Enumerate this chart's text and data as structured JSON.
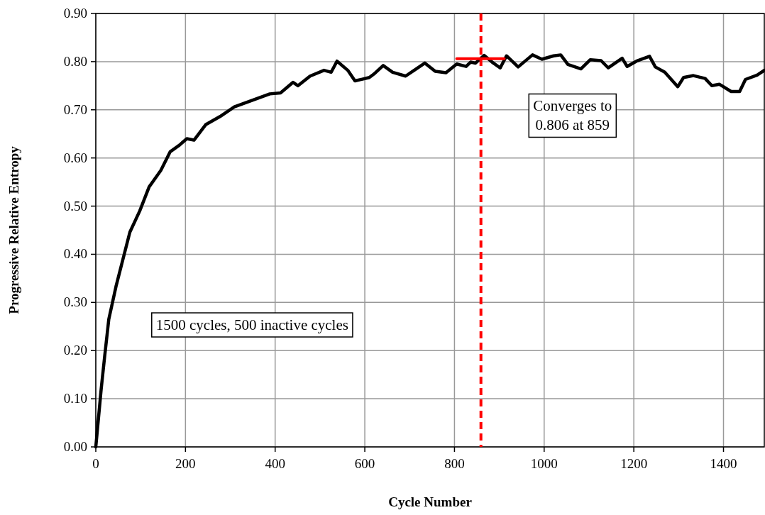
{
  "chart_data": {
    "type": "line",
    "xlabel": "Cycle Number",
    "ylabel": "Progressive Relative Entropy",
    "xlim": [
      0,
      1491
    ],
    "xticks": [
      0,
      200,
      400,
      600,
      800,
      1000,
      1200,
      1400
    ],
    "ylim": [
      0,
      0.9
    ],
    "yticks": [
      {
        "value": 0,
        "label": "0.00"
      },
      {
        "value": 0.1,
        "label": "0.10"
      },
      {
        "value": 0.2,
        "label": "0.20"
      },
      {
        "value": 0.3,
        "label": "0.30"
      },
      {
        "value": 0.4,
        "label": "0.40"
      },
      {
        "value": 0.5,
        "label": "0.50"
      },
      {
        "value": 0.6,
        "label": "0.60"
      },
      {
        "value": 0.7,
        "label": "0.70"
      },
      {
        "value": 0.8,
        "label": "0.80"
      },
      {
        "value": 0.9,
        "label": "0.90"
      }
    ],
    "grid": true,
    "marker": "none",
    "line_style": "solid",
    "series": [
      {
        "color": "#000000",
        "x": [
          0,
          5,
          12,
          20,
          29,
          45,
          76,
          98,
          119,
          145,
          166,
          187,
          203,
          219,
          245,
          277,
          309,
          388,
          412,
          440,
          451,
          478,
          509,
          525,
          538,
          562,
          578,
          610,
          620,
          641,
          662,
          691,
          710,
          734,
          757,
          781,
          805,
          826,
          836,
          847,
          866,
          884,
          902,
          916,
          942,
          974,
          995,
          1021,
          1037,
          1053,
          1082,
          1103,
          1127,
          1143,
          1174,
          1185,
          1206,
          1235,
          1248,
          1269,
          1298,
          1311,
          1333,
          1359,
          1374,
          1391,
          1417,
          1436,
          1449,
          1475,
          1491
        ],
        "values": [
          0,
          0.05,
          0.12,
          0.19,
          0.265,
          0.333,
          0.446,
          0.49,
          0.54,
          0.574,
          0.613,
          0.627,
          0.64,
          0.637,
          0.669,
          0.686,
          0.706,
          0.733,
          0.735,
          0.757,
          0.75,
          0.77,
          0.782,
          0.778,
          0.801,
          0.782,
          0.76,
          0.767,
          0.774,
          0.792,
          0.778,
          0.77,
          0.782,
          0.797,
          0.78,
          0.777,
          0.795,
          0.79,
          0.799,
          0.797,
          0.813,
          0.799,
          0.787,
          0.812,
          0.789,
          0.814,
          0.805,
          0.812,
          0.814,
          0.794,
          0.785,
          0.804,
          0.802,
          0.787,
          0.807,
          0.79,
          0.801,
          0.811,
          0.789,
          0.778,
          0.748,
          0.767,
          0.771,
          0.765,
          0.75,
          0.753,
          0.738,
          0.738,
          0.763,
          0.772,
          0.782
        ]
      },
      {
        "color": "#ff0000",
        "x": [
          805,
          911
        ],
        "values": [
          0.806,
          0.806
        ]
      }
    ],
    "ref_lines": [
      {
        "axis": "x",
        "value": 859,
        "color": "#ff0000",
        "line_style": "dashed"
      }
    ],
    "annotations": [
      "Converges to\n0.806 at 859",
      "1500 cycles, 500 inactive cycles"
    ]
  }
}
